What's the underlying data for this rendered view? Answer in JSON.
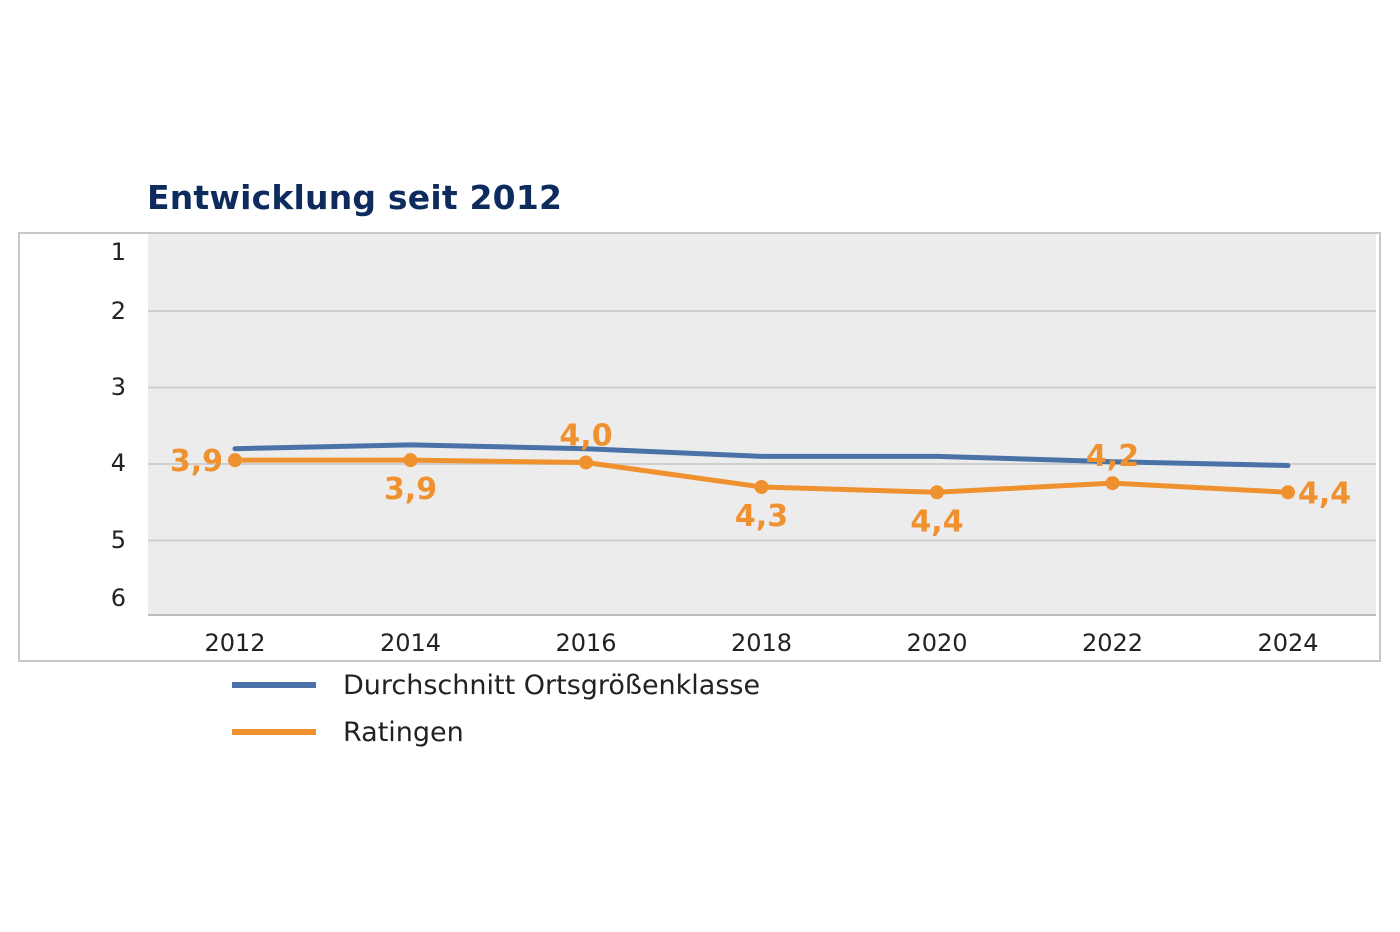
{
  "chart_data": {
    "type": "line",
    "title": "Entwicklung seit 2012",
    "xlabel": "",
    "ylabel": "",
    "categories": [
      "2012",
      "2014",
      "2016",
      "2018",
      "2020",
      "2022",
      "2024"
    ],
    "y_ticks": [
      "1",
      "2",
      "3",
      "4",
      "5",
      "6"
    ],
    "ylim": [
      1,
      6
    ],
    "y_inverted": true,
    "grid": "horizontal",
    "legend_position": "bottom-left",
    "series": [
      {
        "name": "Durchschnitt Ortsgrößenklasse",
        "color": "#4a72a8",
        "values": [
          3.8,
          3.75,
          3.8,
          3.9,
          3.9,
          3.97,
          4.02
        ],
        "markers": false,
        "labels": []
      },
      {
        "name": "Ratingen",
        "color": "#f0912f",
        "values": [
          3.95,
          3.95,
          3.98,
          4.3,
          4.37,
          4.25,
          4.37
        ],
        "markers": true,
        "labels": [
          "3,9",
          "3,9",
          "4,0",
          "4,3",
          "4,4",
          "4,2",
          "4,4"
        ],
        "label_positions": [
          "left",
          "below",
          "above",
          "below",
          "below",
          "above",
          "right"
        ]
      }
    ]
  }
}
